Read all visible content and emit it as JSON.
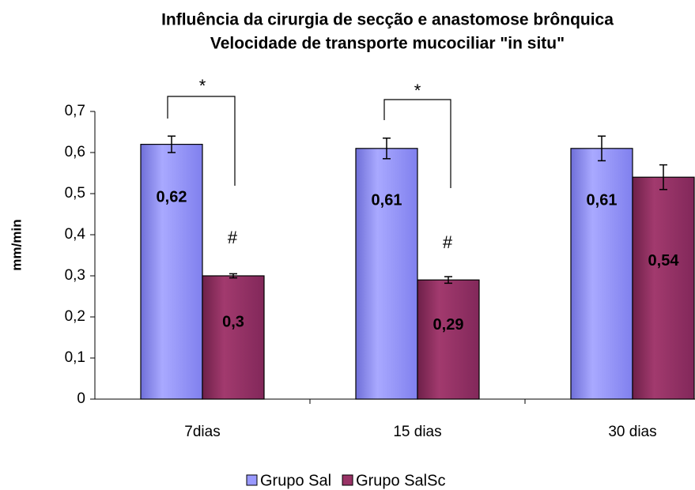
{
  "chart_data": {
    "type": "bar",
    "title": [
      "Influência da cirurgia de secção e anastomose brônquica",
      "Velocidade de transporte mucociliar \"in situ\""
    ],
    "y_label": "mm/min",
    "categories": [
      "7dias",
      "15 dias",
      "30 dias"
    ],
    "series": [
      {
        "name": "Grupo Sal",
        "color": "#9999ff",
        "values": [
          0.62,
          0.61,
          0.61
        ],
        "value_labels": [
          "0,62",
          "0,61",
          "0,61"
        ],
        "errors": [
          0.02,
          0.025,
          0.03
        ]
      },
      {
        "name": "Grupo SalSc",
        "color": "#993366",
        "values": [
          0.3,
          0.29,
          0.54
        ],
        "value_labels": [
          "0,3",
          "0,29",
          "0,54"
        ],
        "errors": [
          0.005,
          0.008,
          0.03
        ]
      }
    ],
    "annotations": [
      "*",
      "*",
      "#",
      "#"
    ],
    "ylim": [
      0,
      0.7
    ],
    "yticks": [
      0,
      {
        "value": 0.1,
        "label": "0,1"
      },
      {
        "value": 0.2,
        "label": "0,2"
      },
      {
        "value": 0.3,
        "label": "0,3"
      },
      {
        "value": 0.4,
        "label": "0,4"
      },
      {
        "value": 0.5,
        "label": "0,5"
      },
      {
        "value": 0.6,
        "label": "0,6"
      },
      {
        "value": 0.7,
        "label": "0,7"
      }
    ],
    "legend": "bottom"
  }
}
